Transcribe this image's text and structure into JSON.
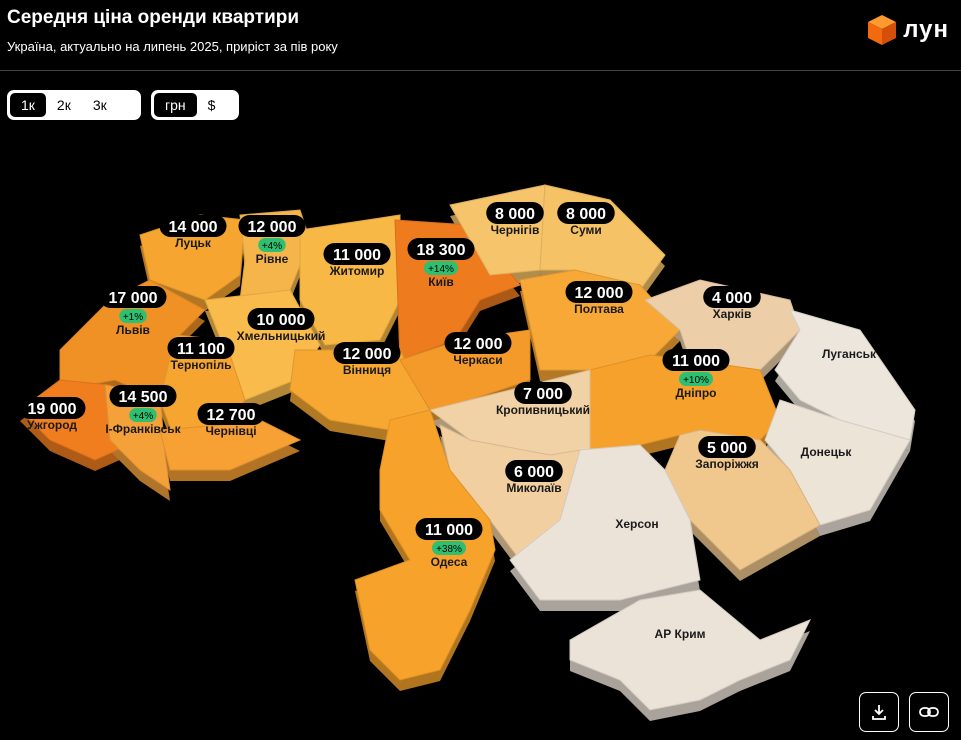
{
  "header": {
    "title": "Середня ціна оренди квартири",
    "subtitle": "Україна, актуально на липень 2025, приріст за пів року",
    "logo": "лун"
  },
  "room_toggle": [
    "1к",
    "2к",
    "3к"
  ],
  "currency_toggle": [
    "грн",
    "$"
  ],
  "regions": [
    {
      "name": "Луцьк",
      "price": "14 000",
      "color": "#f6a530"
    },
    {
      "name": "Рівне",
      "price": "12 000",
      "change": "+4%",
      "color": "#f5b54a"
    },
    {
      "name": "Житомир",
      "price": "11 000",
      "color": "#f8b846"
    },
    {
      "name": "Київ",
      "price": "18 300",
      "change": "+14%",
      "color": "#ef7b1f"
    },
    {
      "name": "Чернігів",
      "price": "8 000",
      "color": "#f6c46a"
    },
    {
      "name": "Суми",
      "price": "8 000",
      "color": "#f6c266"
    },
    {
      "name": "Львів",
      "price": "17 000",
      "change": "+1%",
      "color": "#f09126"
    },
    {
      "name": "Хмельницький",
      "price": "10 000",
      "color": "#f8bb4c"
    },
    {
      "name": "Тернопіль",
      "price": "11 100",
      "color": "#f6a630"
    },
    {
      "name": "Вінниця",
      "price": "12 000",
      "color": "#f7a833"
    },
    {
      "name": "Черкаси",
      "price": "12 000",
      "color": "#f49a2b"
    },
    {
      "name": "Полтава",
      "price": "12 000",
      "color": "#f8a836"
    },
    {
      "name": "Харків",
      "price": "4 000",
      "color": "#eccfa8"
    },
    {
      "name": "Луганськ",
      "color": "#ede6dc"
    },
    {
      "name": "Дніпро",
      "price": "11 000",
      "change": "+10%",
      "color": "#f6a12c"
    },
    {
      "name": "Кропивницький",
      "price": "7 000",
      "color": "#f1d2a6"
    },
    {
      "name": "Донецьк",
      "color": "#ede4d8"
    },
    {
      "name": "Запоріжжя",
      "price": "5 000",
      "color": "#f0c78c"
    },
    {
      "name": "Ужгород",
      "price": "19 000",
      "color": "#f07e1f"
    },
    {
      "name": "І-Франківськ",
      "price": "14 500",
      "change": "+4%",
      "color": "#f5a13a"
    },
    {
      "name": "Чернівці",
      "price": "12 700",
      "color": "#f7a033"
    },
    {
      "name": "Миколаїв",
      "price": "6 000",
      "color": "#f2cfa0"
    },
    {
      "name": "Херсон",
      "color": "#ebe3d8"
    },
    {
      "name": "Одеса",
      "price": "11 000",
      "change": "+38%",
      "color": "#f7a32b"
    },
    {
      "name": "АР Крим",
      "color": "#ebe3d8"
    }
  ]
}
